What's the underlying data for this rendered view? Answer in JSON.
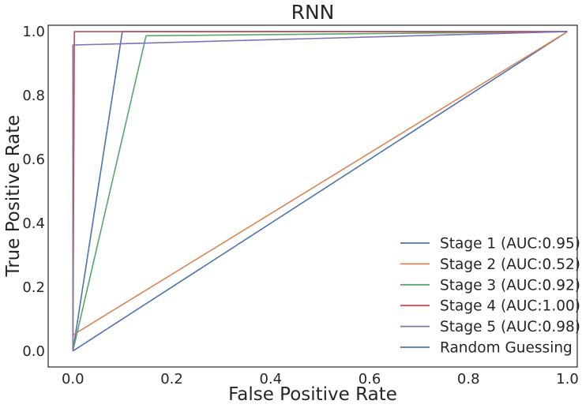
{
  "chart_data": {
    "type": "line",
    "title": "RNN",
    "xlabel": "False Positive Rate",
    "ylabel": "True Positive Rate",
    "xlim": [
      -0.05,
      1.02
    ],
    "ylim": [
      -0.05,
      1.02
    ],
    "xticks": [
      0.0,
      0.2,
      0.4,
      0.6,
      0.8,
      1.0
    ],
    "yticks": [
      0.0,
      0.2,
      0.4,
      0.6,
      0.8,
      1.0
    ],
    "xtick_labels": [
      "0.0",
      "0.2",
      "0.4",
      "0.6",
      "0.8",
      "1.0"
    ],
    "ytick_labels": [
      "0.0",
      "0.2",
      "0.4",
      "0.6",
      "0.8",
      "1.0"
    ],
    "grid": false,
    "legend_position": "bottom-right",
    "series": [
      {
        "name": "Stage 1 (AUC:0.95)",
        "color": "#4c72b0",
        "x": [
          0.0,
          0.1,
          1.0
        ],
        "y": [
          0.0,
          1.0,
          1.0
        ]
      },
      {
        "name": "Stage 2 (AUC:0.52)",
        "color": "#dd8452",
        "x": [
          0.0,
          0.0,
          1.0
        ],
        "y": [
          0.0,
          0.05,
          1.0
        ]
      },
      {
        "name": "Stage 3 (AUC:0.92)",
        "color": "#55a868",
        "x": [
          0.0,
          0.148,
          1.0
        ],
        "y": [
          0.0,
          0.987,
          1.0
        ]
      },
      {
        "name": "Stage 4 (AUC:1.00)",
        "color": "#c44e52",
        "x": [
          0.0,
          0.003,
          1.0
        ],
        "y": [
          0.0,
          1.0,
          1.0
        ]
      },
      {
        "name": "Stage 5 (AUC:0.98)",
        "color": "#8172b3",
        "x": [
          0.0,
          0.0,
          1.0
        ],
        "y": [
          0.0,
          0.958,
          1.0
        ]
      },
      {
        "name": "Random Guessing",
        "color": "#4c72b0",
        "x": [
          0.0,
          1.0
        ],
        "y": [
          0.0,
          1.0
        ]
      }
    ]
  }
}
